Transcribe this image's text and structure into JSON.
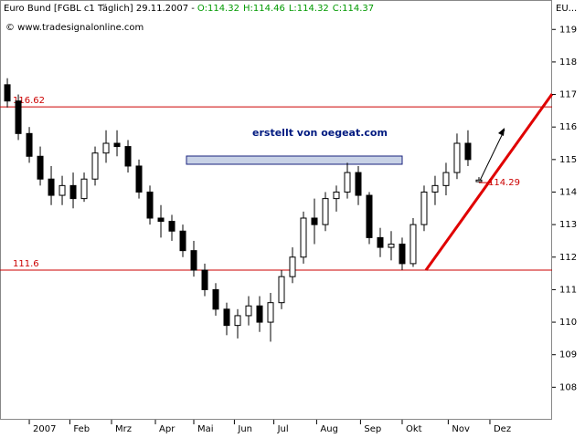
{
  "chart_data": {
    "type": "candlestick",
    "title": "Euro Bund [FGBL c1  Täglich] 29.11.2007 -",
    "ohlc_labels": [
      "O:114.32",
      "H:114.46",
      "L:114.32",
      "C:114.37"
    ],
    "ohlc_label_color": "#009900",
    "symbol": "EU...",
    "watermark": "© www.tradesignalonline.com",
    "annotation": "erstellt von oegeat.com",
    "open": [
      117.3,
      116.8,
      115.8,
      115.1,
      114.4,
      113.9,
      114.2,
      113.8,
      114.4,
      115.2,
      115.5,
      115.4,
      114.8,
      114.0,
      113.2,
      113.1,
      112.8,
      112.2,
      111.6,
      111.0,
      110.4,
      109.9,
      110.2,
      110.5,
      110.0,
      110.6,
      111.4,
      112.0,
      113.2,
      113.0,
      113.8,
      114.0,
      114.6,
      113.9,
      112.6,
      112.3,
      112.4,
      111.8,
      113.0,
      114.0,
      114.2,
      114.6,
      115.5,
      114.32
    ],
    "high": [
      117.5,
      117.0,
      116.0,
      115.4,
      114.8,
      114.5,
      114.6,
      114.6,
      115.4,
      115.9,
      115.9,
      115.6,
      115.0,
      114.2,
      113.6,
      113.3,
      113.0,
      112.5,
      111.8,
      111.2,
      110.6,
      110.4,
      110.8,
      110.8,
      110.9,
      111.6,
      112.3,
      113.4,
      113.8,
      114.0,
      114.2,
      114.9,
      114.8,
      114.0,
      112.9,
      112.8,
      112.6,
      113.2,
      114.2,
      114.5,
      114.9,
      115.8,
      115.9,
      114.46
    ],
    "low": [
      116.6,
      115.6,
      114.9,
      114.2,
      113.6,
      113.6,
      113.5,
      113.7,
      114.2,
      114.9,
      115.1,
      114.6,
      113.8,
      113.0,
      112.6,
      112.5,
      112.0,
      111.4,
      110.8,
      110.2,
      109.6,
      109.5,
      109.9,
      109.7,
      109.4,
      110.4,
      111.2,
      111.8,
      112.4,
      112.8,
      113.4,
      113.8,
      113.6,
      112.4,
      112.0,
      111.9,
      111.6,
      111.7,
      112.8,
      113.6,
      113.9,
      114.4,
      114.8,
      114.32
    ],
    "close": [
      116.8,
      115.8,
      115.1,
      114.4,
      113.9,
      114.2,
      113.8,
      114.4,
      115.2,
      115.5,
      115.4,
      114.8,
      114.0,
      113.2,
      113.1,
      112.8,
      112.2,
      111.6,
      111.0,
      110.4,
      109.9,
      110.2,
      110.5,
      110.0,
      110.6,
      111.4,
      112.0,
      113.2,
      113.0,
      113.8,
      114.0,
      114.6,
      113.9,
      112.6,
      112.3,
      112.4,
      111.8,
      113.0,
      114.0,
      114.2,
      114.6,
      115.5,
      115.0,
      114.37
    ],
    "up_color": "#ffffff",
    "down_color": "#000000",
    "xlim": [
      -0.67,
      49.67
    ],
    "xticks": [
      {
        "value": 2,
        "label": "2007"
      },
      {
        "value": 5.7,
        "label": "Feb"
      },
      {
        "value": 9.5,
        "label": "Mrz"
      },
      {
        "value": 13.5,
        "label": "Apr"
      },
      {
        "value": 17,
        "label": "Mai"
      },
      {
        "value": 20.7,
        "label": "Jun"
      },
      {
        "value": 24.3,
        "label": "Jul"
      },
      {
        "value": 28.2,
        "label": "Aug"
      },
      {
        "value": 32.2,
        "label": "Sep"
      },
      {
        "value": 36,
        "label": "Okt"
      },
      {
        "value": 40.2,
        "label": "Nov"
      },
      {
        "value": 44,
        "label": "Dez"
      }
    ],
    "ylim": [
      107,
      119.4
    ],
    "yticks": [
      108,
      109,
      110,
      111,
      112,
      113,
      114,
      115,
      116,
      117,
      118,
      119
    ],
    "hlines": [
      {
        "value": 116.62,
        "label": "116.62"
      },
      {
        "value": 111.6,
        "label": "111.6"
      }
    ],
    "hline_color": "#cc0000",
    "marker": {
      "value": 114.29,
      "label": "114.29"
    },
    "grid": false
  }
}
